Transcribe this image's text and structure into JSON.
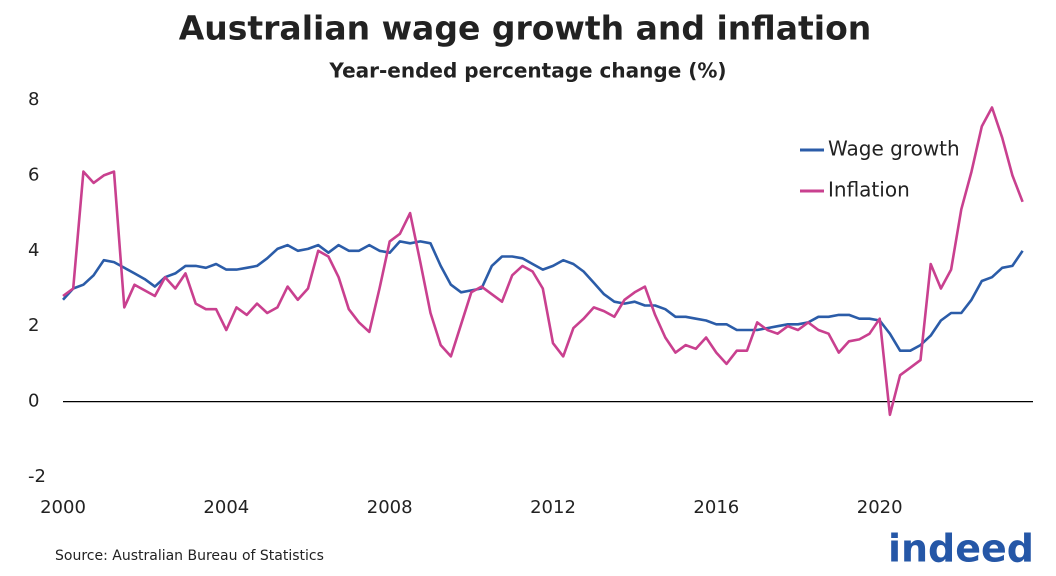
{
  "chart_data": {
    "type": "line",
    "title": "Australian wage growth and inflation",
    "subtitle": "Year-ended percentage change (%)",
    "source": "Source: Australian Bureau of Statistics",
    "logo": "indeed",
    "x": [
      2000,
      2000.25,
      2000.5,
      2000.75,
      2001,
      2001.25,
      2001.5,
      2001.75,
      2002,
      2002.25,
      2002.5,
      2002.75,
      2003,
      2003.25,
      2003.5,
      2003.75,
      2004,
      2004.25,
      2004.5,
      2004.75,
      2005,
      2005.25,
      2005.5,
      2005.75,
      2006,
      2006.25,
      2006.5,
      2006.75,
      2007,
      2007.25,
      2007.5,
      2007.75,
      2008,
      2008.25,
      2008.5,
      2008.75,
      2009,
      2009.25,
      2009.5,
      2009.75,
      2010,
      2010.25,
      2010.5,
      2010.75,
      2011,
      2011.25,
      2011.5,
      2011.75,
      2012,
      2012.25,
      2012.5,
      2012.75,
      2013,
      2013.25,
      2013.5,
      2013.75,
      2014,
      2014.25,
      2014.5,
      2014.75,
      2015,
      2015.25,
      2015.5,
      2015.75,
      2016,
      2016.25,
      2016.5,
      2016.75,
      2017,
      2017.25,
      2017.5,
      2017.75,
      2018,
      2018.25,
      2018.5,
      2018.75,
      2019,
      2019.25,
      2019.5,
      2019.75,
      2020,
      2020.25,
      2020.5,
      2020.75,
      2021,
      2021.25,
      2021.5,
      2021.75,
      2022,
      2022.25,
      2022.5,
      2022.75,
      2023,
      2023.25,
      2023.5
    ],
    "series": [
      {
        "name": "Wage growth",
        "color": "#2b5ca8",
        "values": [
          2.7,
          3.0,
          3.1,
          3.35,
          3.75,
          3.7,
          3.55,
          3.4,
          3.25,
          3.05,
          3.3,
          3.4,
          3.6,
          3.6,
          3.55,
          3.65,
          3.5,
          3.5,
          3.55,
          3.6,
          3.8,
          4.05,
          4.15,
          4.0,
          4.05,
          4.15,
          3.95,
          4.15,
          4.0,
          4.0,
          4.15,
          4.0,
          3.95,
          4.25,
          4.2,
          4.25,
          4.2,
          3.6,
          3.1,
          2.9,
          2.95,
          3.0,
          3.6,
          3.85,
          3.85,
          3.8,
          3.65,
          3.5,
          3.6,
          3.75,
          3.65,
          3.45,
          3.15,
          2.85,
          2.65,
          2.6,
          2.65,
          2.55,
          2.55,
          2.45,
          2.25,
          2.25,
          2.2,
          2.15,
          2.05,
          2.05,
          1.9,
          1.9,
          1.9,
          1.95,
          2.0,
          2.05,
          2.05,
          2.1,
          2.25,
          2.25,
          2.3,
          2.3,
          2.2,
          2.2,
          2.15,
          1.8,
          1.35,
          1.35,
          1.5,
          1.75,
          2.15,
          2.35,
          2.35,
          2.7,
          3.2,
          3.3,
          3.55,
          3.6,
          4.0
        ]
      },
      {
        "name": "Inflation",
        "color": "#c9408f",
        "values": [
          2.8,
          3.0,
          6.1,
          5.8,
          6.0,
          6.1,
          2.5,
          3.1,
          2.95,
          2.8,
          3.3,
          3.0,
          3.4,
          2.6,
          2.45,
          2.45,
          1.9,
          2.5,
          2.3,
          2.6,
          2.35,
          2.5,
          3.05,
          2.7,
          3.0,
          4.0,
          3.85,
          3.3,
          2.45,
          2.1,
          1.85,
          3.0,
          4.25,
          4.45,
          5.0,
          3.7,
          2.35,
          1.5,
          1.2,
          2.05,
          2.9,
          3.05,
          2.85,
          2.65,
          3.35,
          3.6,
          3.45,
          3.0,
          1.55,
          1.2,
          1.95,
          2.2,
          2.5,
          2.4,
          2.25,
          2.7,
          2.9,
          3.05,
          2.3,
          1.7,
          1.3,
          1.5,
          1.4,
          1.7,
          1.3,
          1.0,
          1.35,
          1.35,
          2.1,
          1.9,
          1.8,
          2.0,
          1.9,
          2.1,
          1.9,
          1.8,
          1.3,
          1.6,
          1.65,
          1.8,
          2.2,
          -0.35,
          0.7,
          0.9,
          1.1,
          3.65,
          3.0,
          3.5,
          5.1,
          6.1,
          7.3,
          7.8,
          7.0,
          6.0,
          5.3
        ]
      }
    ],
    "xlim": [
      2000,
      2024
    ],
    "xticks": [
      2000,
      2004,
      2008,
      2012,
      2016,
      2020
    ],
    "ylim": [
      -2,
      8
    ],
    "yticks": [
      -2,
      0,
      2,
      4,
      6,
      8
    ],
    "grid": false,
    "legend": "upper right"
  }
}
